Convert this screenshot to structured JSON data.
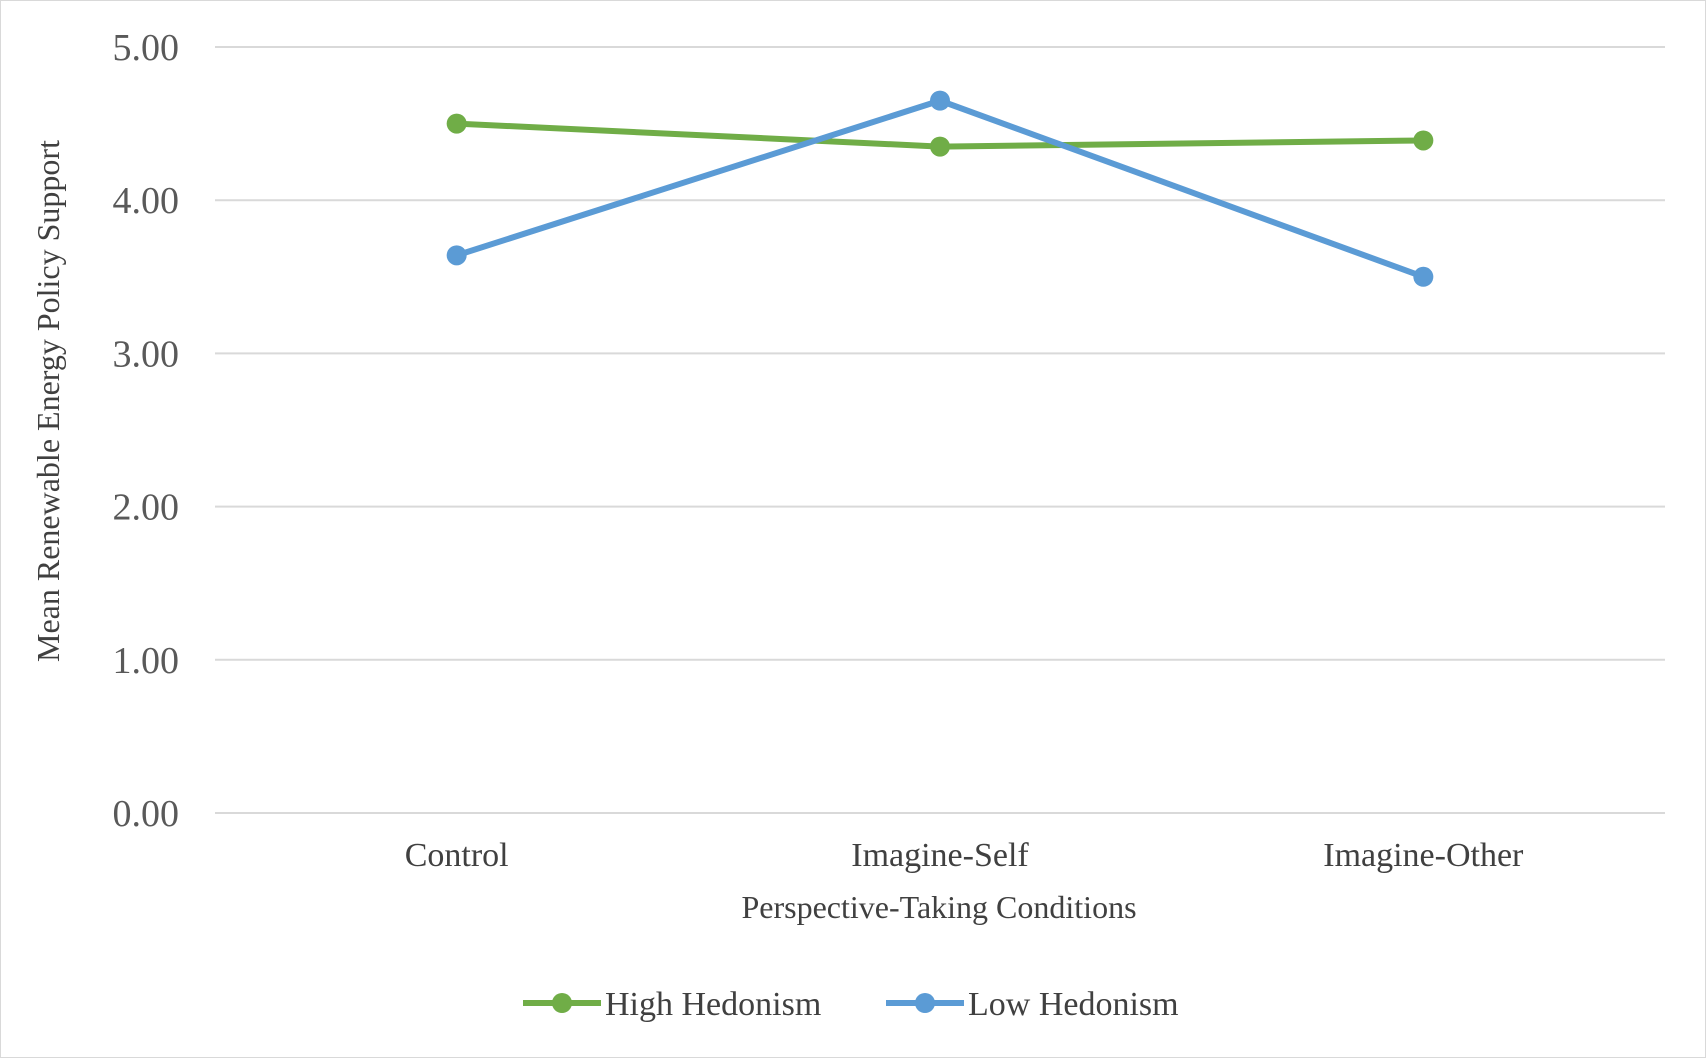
{
  "chart_data": {
    "type": "line",
    "title": "",
    "xlabel": "Perspective-Taking Conditions",
    "ylabel": "Mean Renewable Energy Policy Support",
    "categories": [
      "Control",
      "Imagine-Self",
      "Imagine-Other"
    ],
    "ylim": [
      0,
      5
    ],
    "yticks": [
      "0.00",
      "1.00",
      "2.00",
      "3.00",
      "4.00",
      "5.00"
    ],
    "grid": true,
    "legend_position": "bottom",
    "series": [
      {
        "name": "High Hedonism",
        "color": "#70AD47",
        "values": [
          4.5,
          4.35,
          4.39
        ]
      },
      {
        "name": "Low Hedonism",
        "color": "#5B9BD5",
        "values": [
          3.64,
          4.65,
          3.5
        ]
      }
    ]
  }
}
